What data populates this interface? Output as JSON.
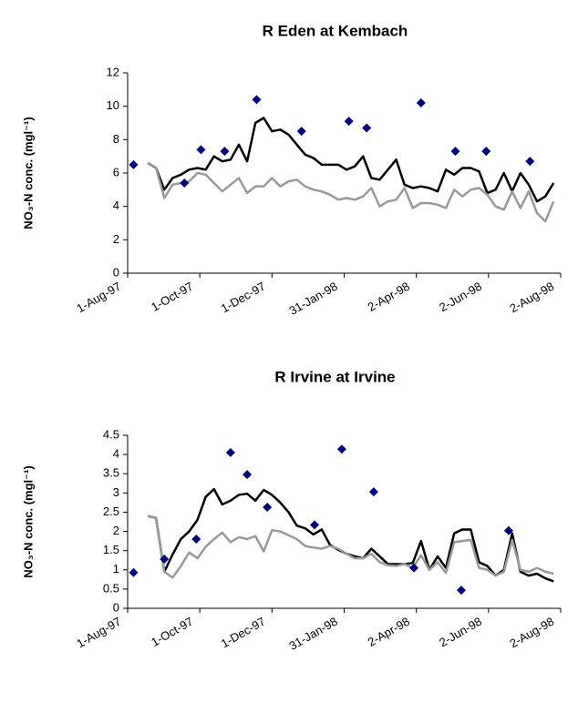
{
  "chart_data": [
    {
      "type": "line",
      "title": "R Eden at Kembach",
      "y_label": "NO₃-N conc. (mgl⁻¹)",
      "xlim": [
        "1997-08-01",
        "1998-08-02"
      ],
      "xticks": [
        {
          "value": "1997-08-01",
          "label": "1-Aug-97"
        },
        {
          "value": "1997-10-01",
          "label": "1-Oct-97"
        },
        {
          "value": "1997-12-01",
          "label": "1-Dec-97"
        },
        {
          "value": "1998-01-31",
          "label": "31-Jan-98"
        },
        {
          "value": "1998-04-02",
          "label": "2-Apr-98"
        },
        {
          "value": "1998-06-02",
          "label": "2-Jun-98"
        },
        {
          "value": "1998-08-02",
          "label": "2-Aug-98"
        }
      ],
      "ylim": [
        0,
        12
      ],
      "yticks": [
        0,
        2,
        4,
        6,
        8,
        10,
        12
      ],
      "x": [
        "1997-08-18",
        "1997-08-25",
        "1997-09-01",
        "1997-09-08",
        "1997-09-15",
        "1997-09-22",
        "1997-09-29",
        "1997-10-06",
        "1997-10-13",
        "1997-10-20",
        "1997-10-27",
        "1997-11-03",
        "1997-11-10",
        "1997-11-17",
        "1997-11-24",
        "1997-12-01",
        "1997-12-08",
        "1997-12-15",
        "1997-12-22",
        "1997-12-29",
        "1998-01-05",
        "1998-01-12",
        "1998-01-19",
        "1998-01-26",
        "1998-02-02",
        "1998-02-09",
        "1998-02-16",
        "1998-02-23",
        "1998-03-02",
        "1998-03-09",
        "1998-03-16",
        "1998-03-23",
        "1998-03-30",
        "1998-04-06",
        "1998-04-13",
        "1998-04-20",
        "1998-04-27",
        "1998-05-04",
        "1998-05-11",
        "1998-05-18",
        "1998-05-25",
        "1998-06-01",
        "1998-06-08",
        "1998-06-15",
        "1998-06-22",
        "1998-06-29",
        "1998-07-06",
        "1998-07-13",
        "1998-07-20",
        "1998-07-27"
      ],
      "series": [
        {
          "type": "scatter",
          "color": "#000080",
          "x": [
            "1997-08-06",
            "1997-09-18",
            "1997-10-02",
            "1997-10-22",
            "1997-11-18",
            "1997-12-26",
            "1998-02-04",
            "1998-02-19",
            "1998-04-06",
            "1998-05-05",
            "1998-05-31",
            "1998-07-07"
          ],
          "values": [
            6.5,
            5.4,
            7.4,
            7.3,
            10.4,
            8.5,
            9.1,
            8.7,
            10.2,
            7.3,
            7.3,
            6.7
          ]
        },
        {
          "type": "line",
          "color": "#000000",
          "values": [
            6.6,
            6.3,
            5.0,
            5.7,
            5.9,
            6.2,
            6.3,
            6.2,
            7.0,
            6.7,
            6.8,
            7.7,
            6.7,
            9.0,
            9.3,
            8.5,
            8.6,
            8.3,
            7.7,
            7.1,
            6.9,
            6.5,
            6.5,
            6.5,
            6.2,
            6.4,
            7.0,
            5.7,
            5.6,
            6.2,
            6.8,
            5.3,
            5.1,
            5.2,
            5.1,
            4.9,
            6.2,
            5.9,
            6.3,
            6.3,
            6.1,
            4.8,
            5.0,
            6.0,
            4.9,
            6.0,
            5.3,
            4.3,
            4.6,
            5.4
          ]
        },
        {
          "type": "line",
          "color": "#999999",
          "values": [
            6.6,
            6.3,
            4.5,
            5.3,
            5.4,
            5.5,
            6.0,
            5.9,
            5.4,
            4.9,
            5.3,
            5.7,
            4.8,
            5.2,
            5.2,
            5.7,
            5.2,
            5.5,
            5.6,
            5.2,
            5.0,
            4.9,
            4.7,
            4.4,
            4.5,
            4.4,
            4.6,
            5.1,
            4.0,
            4.3,
            4.4,
            5.1,
            3.9,
            4.2,
            4.2,
            4.1,
            3.9,
            5.0,
            4.6,
            5.0,
            5.1,
            4.7,
            4.0,
            3.8,
            4.9,
            3.9,
            4.9,
            3.6,
            3.1,
            4.3
          ]
        }
      ]
    },
    {
      "type": "line",
      "title": "R Irvine at Irvine",
      "y_label": "NO₃-N conc. (mgl⁻¹)",
      "xlim": [
        "1997-08-01",
        "1998-08-02"
      ],
      "xticks": [
        {
          "value": "1997-08-01",
          "label": "1-Aug-97"
        },
        {
          "value": "1997-10-01",
          "label": "1-Oct-97"
        },
        {
          "value": "1997-12-01",
          "label": "1-Dec-97"
        },
        {
          "value": "1998-01-31",
          "label": "31-Jan-98"
        },
        {
          "value": "1998-04-02",
          "label": "2-Apr-98"
        },
        {
          "value": "1998-06-02",
          "label": "2-Jun-98"
        },
        {
          "value": "1998-08-02",
          "label": "2-Aug-98"
        }
      ],
      "ylim": [
        0,
        4.5
      ],
      "yticks": [
        0,
        0.5,
        1,
        1.5,
        2,
        2.5,
        3,
        3.5,
        4,
        4.5
      ],
      "x": [
        "1997-08-18",
        "1997-08-25",
        "1997-09-01",
        "1997-09-08",
        "1997-09-15",
        "1997-09-22",
        "1997-09-29",
        "1997-10-06",
        "1997-10-13",
        "1997-10-20",
        "1997-10-27",
        "1997-11-03",
        "1997-11-10",
        "1997-11-17",
        "1997-11-24",
        "1997-12-01",
        "1997-12-08",
        "1997-12-15",
        "1997-12-22",
        "1997-12-29",
        "1998-01-05",
        "1998-01-12",
        "1998-01-19",
        "1998-01-26",
        "1998-02-02",
        "1998-02-09",
        "1998-02-16",
        "1998-02-23",
        "1998-03-02",
        "1998-03-09",
        "1998-03-16",
        "1998-03-23",
        "1998-03-30",
        "1998-04-06",
        "1998-04-13",
        "1998-04-20",
        "1998-04-27",
        "1998-05-04",
        "1998-05-11",
        "1998-05-18",
        "1998-05-25",
        "1998-06-01",
        "1998-06-08",
        "1998-06-15",
        "1998-06-22",
        "1998-06-29",
        "1998-07-06",
        "1998-07-13",
        "1998-07-20",
        "1998-07-27"
      ],
      "series": [
        {
          "type": "scatter",
          "color": "#000080",
          "x": [
            "1997-08-06",
            "1997-09-01",
            "1997-09-28",
            "1997-10-27",
            "1997-11-10",
            "1997-11-27",
            "1998-01-06",
            "1998-01-29",
            "1998-02-25",
            "1998-03-31",
            "1998-05-10",
            "1998-06-19"
          ],
          "values": [
            0.93,
            1.28,
            1.8,
            4.05,
            3.48,
            2.63,
            2.17,
            4.14,
            3.03,
            1.05,
            0.47,
            2.02
          ]
        },
        {
          "type": "line",
          "color": "#000000",
          "values": [
            2.4,
            2.35,
            0.95,
            1.4,
            1.8,
            2.0,
            2.3,
            2.9,
            3.1,
            2.7,
            2.8,
            2.95,
            2.98,
            2.8,
            3.08,
            2.95,
            2.75,
            2.5,
            2.15,
            2.08,
            1.92,
            2.05,
            1.65,
            1.52,
            1.42,
            1.35,
            1.3,
            1.55,
            1.35,
            1.15,
            1.15,
            1.15,
            1.18,
            1.75,
            1.0,
            1.35,
            1.05,
            1.95,
            2.05,
            2.05,
            1.2,
            1.1,
            0.85,
            1.0,
            1.95,
            0.95,
            0.85,
            0.9,
            0.78,
            0.7
          ]
        },
        {
          "type": "line",
          "color": "#999999",
          "values": [
            2.4,
            2.35,
            0.95,
            0.8,
            1.1,
            1.45,
            1.3,
            1.6,
            1.8,
            1.97,
            1.72,
            1.85,
            1.8,
            1.88,
            1.48,
            2.03,
            2.0,
            1.9,
            1.8,
            1.62,
            1.58,
            1.55,
            1.62,
            1.55,
            1.42,
            1.3,
            1.3,
            1.42,
            1.2,
            1.12,
            1.1,
            1.15,
            1.05,
            1.38,
            1.0,
            1.2,
            0.92,
            1.72,
            1.75,
            1.78,
            1.05,
            1.0,
            0.85,
            0.95,
            1.78,
            1.0,
            0.95,
            1.05,
            0.95,
            0.9
          ]
        }
      ]
    }
  ]
}
